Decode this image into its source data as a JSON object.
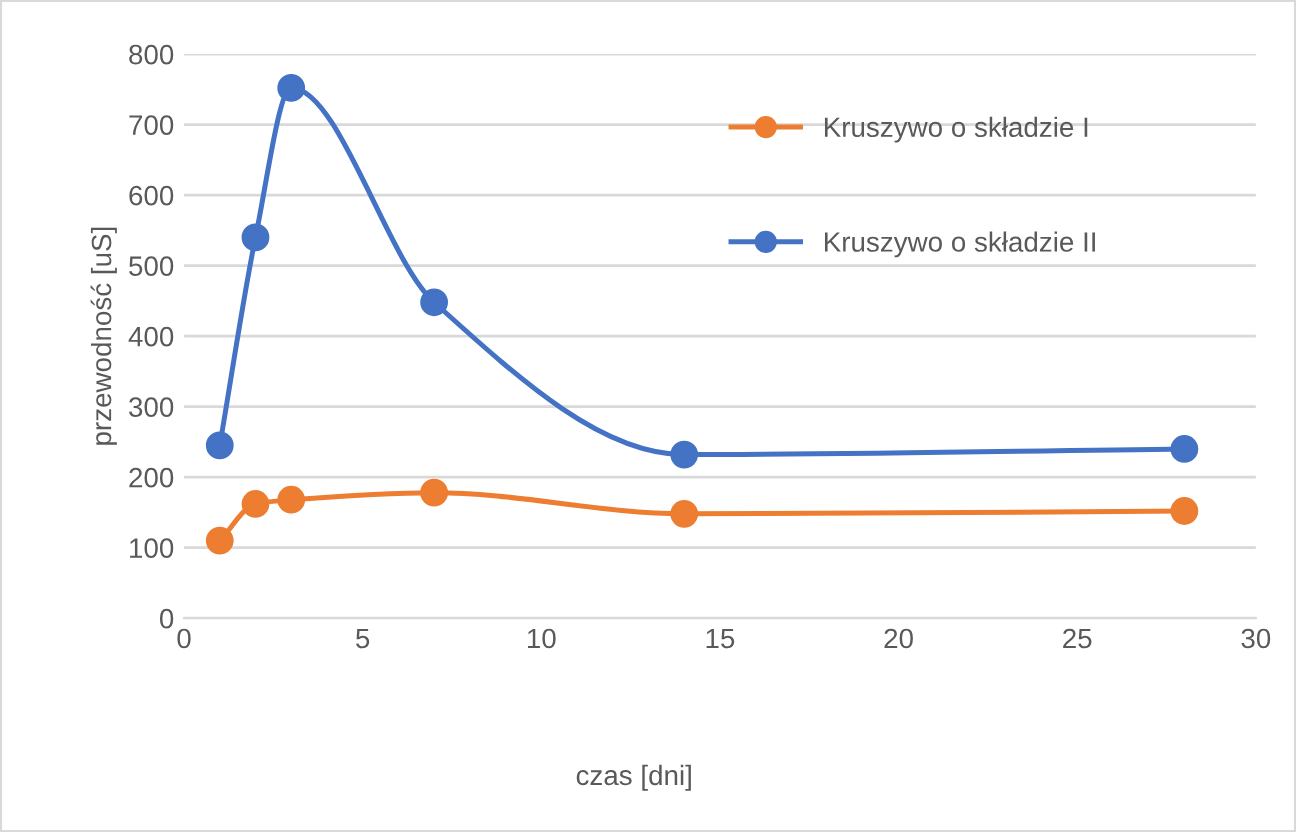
{
  "chart_data": {
    "type": "line",
    "xlabel": "czas [dni]",
    "ylabel": "przewodność [uS]",
    "xlim": [
      0,
      30
    ],
    "xticks": [
      0,
      5,
      10,
      15,
      20,
      25,
      30
    ],
    "ylim": [
      0,
      800
    ],
    "yticks": [
      0,
      100,
      200,
      300,
      400,
      500,
      600,
      700,
      800
    ],
    "grid": "y",
    "legend": "top right",
    "marker": "circle",
    "line_style": "solid",
    "x": [
      1,
      2,
      3,
      7,
      14,
      28
    ],
    "series": [
      {
        "name": "Kruszywo o składzie I",
        "color": "#ed7d31",
        "values": [
          110,
          162,
          168,
          178,
          148,
          152
        ]
      },
      {
        "name": "Kruszywo o składzie II",
        "color": "#4472c4",
        "values": [
          245,
          540,
          752,
          448,
          232,
          240
        ]
      }
    ]
  }
}
